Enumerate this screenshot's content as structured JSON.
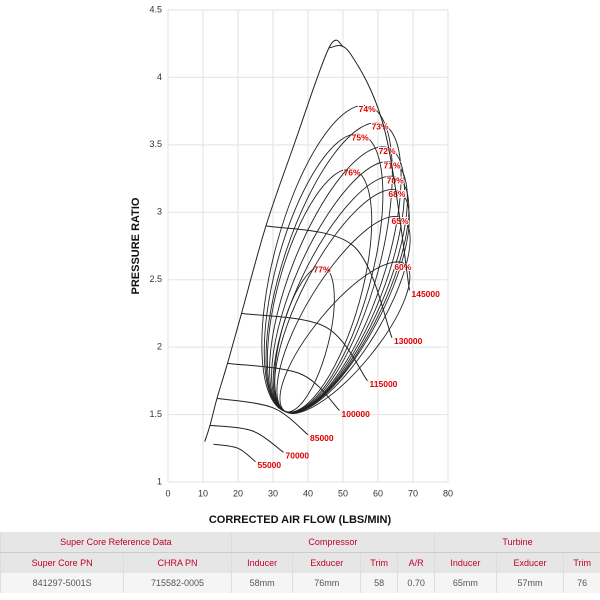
{
  "chart_data": {
    "type": "compressor-map",
    "xlabel": "CORRECTED AIR FLOW (LBS/MIN)",
    "ylabel": "PRESSURE RATIO",
    "xlim": [
      0,
      80
    ],
    "xticks": [
      0,
      10,
      20,
      30,
      40,
      50,
      60,
      70,
      80
    ],
    "ylim": [
      1,
      4.5
    ],
    "yticks": [
      1,
      1.5,
      2,
      2.5,
      3,
      3.5,
      4,
      4.5
    ],
    "grid": true,
    "line_color": "#222222",
    "label_color": "#e00000",
    "surge_line": {
      "x": [
        10.5,
        12,
        14,
        17,
        21,
        28,
        36,
        46,
        50
      ],
      "y": [
        1.3,
        1.42,
        1.62,
        1.88,
        2.25,
        2.9,
        3.5,
        4.22,
        4.23
      ]
    },
    "speed_lines": [
      {
        "name": "55000",
        "x": [
          13,
          20,
          25
        ],
        "y": [
          1.28,
          1.25,
          1.15
        ]
      },
      {
        "name": "70000",
        "x": [
          12,
          24,
          33
        ],
        "y": [
          1.42,
          1.38,
          1.22
        ]
      },
      {
        "name": "85000",
        "x": [
          14,
          30,
          40
        ],
        "y": [
          1.62,
          1.55,
          1.35
        ]
      },
      {
        "name": "100000",
        "x": [
          17,
          38,
          49
        ],
        "y": [
          1.88,
          1.8,
          1.53
        ]
      },
      {
        "name": "115000",
        "x": [
          21,
          45,
          57
        ],
        "y": [
          2.25,
          2.15,
          1.75
        ]
      },
      {
        "name": "130000",
        "x": [
          28,
          53,
          64
        ],
        "y": [
          2.9,
          2.75,
          2.07
        ]
      },
      {
        "name": "145000",
        "x": [
          46,
          52,
          62,
          69
        ],
        "y": [
          4.22,
          4.18,
          3.6,
          2.42
        ]
      }
    ],
    "efficiency": {
      "values": [
        77,
        76,
        75,
        74,
        73,
        72,
        71,
        70,
        68,
        65,
        60
      ],
      "value_labels": [
        "77%",
        "76%",
        "75%",
        "74%",
        "73%",
        "72%",
        "71%",
        "70%",
        "68%",
        "65%",
        "60%"
      ],
      "x": [
        44,
        52.6,
        54.9,
        56.9,
        60.6,
        62.6,
        64,
        64.9,
        65.4,
        66.3,
        67.1
      ],
      "y": [
        2.57,
        3.29,
        3.55,
        3.76,
        3.63,
        3.45,
        3.34,
        3.23,
        3.13,
        2.93,
        2.59
      ]
    }
  },
  "table": {
    "groups": [
      "Super Core Reference Data",
      "Compressor",
      "Turbine"
    ],
    "headers": [
      "Super Core PN",
      "CHRA PN",
      "Inducer",
      "Exducer",
      "Trim",
      "A/R",
      "Inducer",
      "Exducer",
      "Trim"
    ],
    "rows": [
      [
        "841297-5001S",
        "715582-0005",
        "58mm",
        "76mm",
        "58",
        "0.70",
        "65mm",
        "57mm",
        "76"
      ]
    ]
  }
}
